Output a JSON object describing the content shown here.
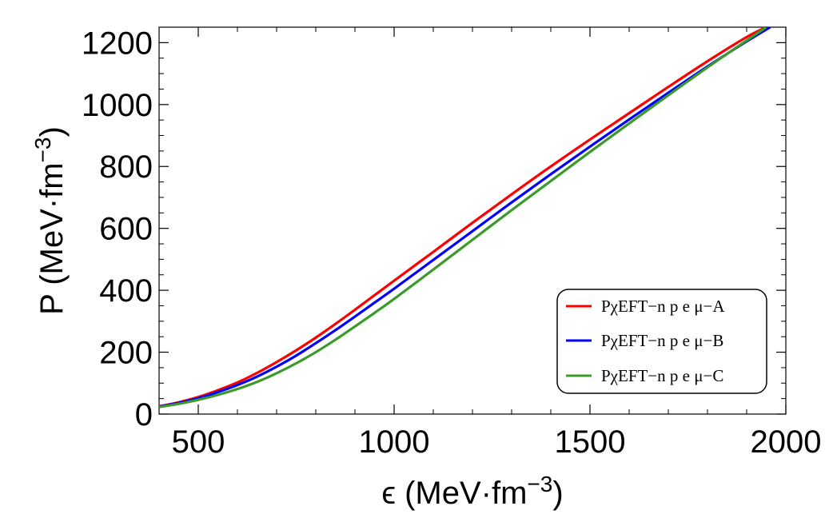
{
  "chart_data": {
    "type": "line",
    "title": "",
    "xlabel_main": "ϵ (MeV·fm",
    "xlabel_exp": "−3",
    "xlabel_close": ")",
    "ylabel_main": "P (MeV·fm",
    "ylabel_exp": "−3",
    "ylabel_close": ")",
    "xlim": [
      400,
      2000
    ],
    "ylim": [
      0,
      1250
    ],
    "x_ticks": [
      500,
      1000,
      1500,
      2000
    ],
    "y_ticks": [
      0,
      200,
      400,
      600,
      800,
      1000,
      1200
    ],
    "x_minor_step": 100,
    "y_minor_step": 50,
    "legend_position": "bottom-right",
    "series": [
      {
        "name": "PχEFT−n p e μ−A",
        "color": "#ff0000",
        "x": [
          400,
          450,
          500,
          550,
          600,
          650,
          700,
          750,
          800,
          850,
          900,
          950,
          1000,
          1100,
          1200,
          1300,
          1400,
          1500,
          1600,
          1700,
          1800,
          1900,
          1950
        ],
        "y": [
          25,
          38,
          55,
          77,
          102,
          133,
          168,
          206,
          247,
          291,
          337,
          384,
          431,
          524,
          618,
          710,
          800,
          887,
          972,
          1057,
          1140,
          1218,
          1250
        ]
      },
      {
        "name": "PχEFT−n p e μ−B",
        "color": "#0000ff",
        "x": [
          400,
          450,
          500,
          550,
          600,
          650,
          700,
          750,
          800,
          850,
          900,
          950,
          1000,
          1100,
          1200,
          1300,
          1400,
          1500,
          1600,
          1700,
          1800,
          1900,
          1960
        ],
        "y": [
          24,
          36,
          51,
          71,
          94,
          121,
          153,
          189,
          229,
          271,
          315,
          360,
          405,
          498,
          591,
          684,
          775,
          864,
          952,
          1038,
          1123,
          1204,
          1250
        ]
      },
      {
        "name": "PχEFT−n p e μ−C",
        "color": "#3a9a2a",
        "x": [
          400,
          450,
          500,
          550,
          600,
          650,
          700,
          750,
          800,
          850,
          900,
          950,
          1000,
          1100,
          1200,
          1300,
          1400,
          1500,
          1600,
          1700,
          1800,
          1900,
          1950
        ],
        "y": [
          23,
          33,
          46,
          62,
          81,
          104,
          132,
          164,
          200,
          240,
          283,
          327,
          372,
          467,
          563,
          659,
          753,
          847,
          939,
          1030,
          1120,
          1207,
          1250
        ]
      }
    ]
  }
}
